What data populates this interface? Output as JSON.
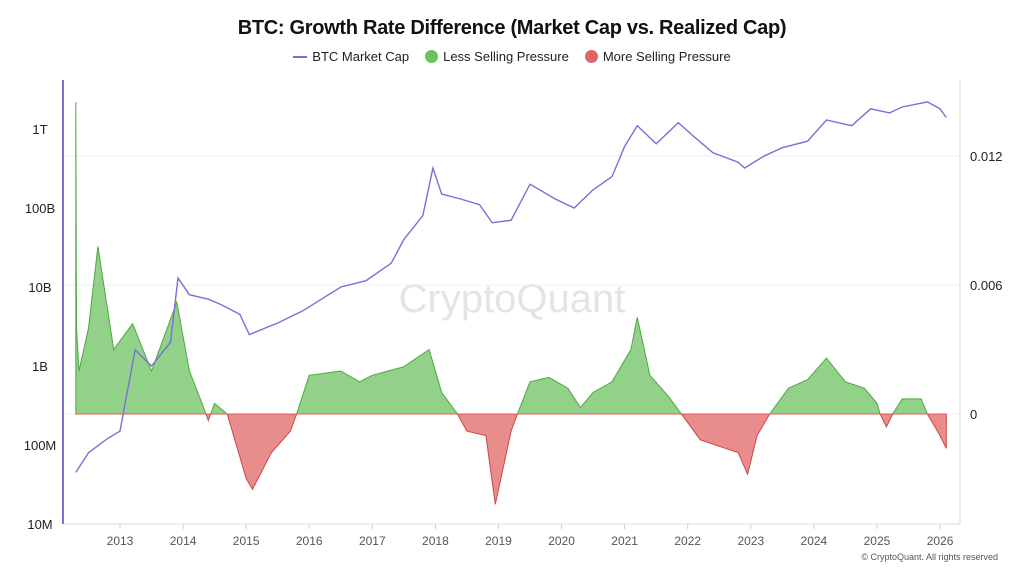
{
  "chart_data": {
    "type": "line",
    "title": "BTC: Growth Rate Difference (Market Cap vs. Realized Cap)",
    "legend": [
      {
        "name": "BTC Market Cap",
        "color": "#7b6fd6",
        "shape": "line"
      },
      {
        "name": "Less Selling Pressure",
        "color": "#6cc160",
        "shape": "circle"
      },
      {
        "name": "More Selling Pressure",
        "color": "#e06666",
        "shape": "circle"
      }
    ],
    "legend_placement": "top-center",
    "x_ticks": [
      "2013",
      "2014",
      "2015",
      "2016",
      "2017",
      "2018",
      "2019",
      "2020",
      "2021",
      "2022",
      "2023",
      "2024",
      "2025",
      "2026"
    ],
    "xlim": [
      2012.2,
      2026.3
    ],
    "y_left": {
      "scale": "log",
      "ticks": [
        "10M",
        "100M",
        "1B",
        "10B",
        "100B",
        "1T"
      ],
      "tick_values": [
        10000000.0,
        100000000.0,
        1000000000.0,
        10000000000.0,
        100000000000.0,
        1000000000000.0
      ],
      "ylim": [
        10000000.0,
        3500000000000.0
      ]
    },
    "y_right": {
      "scale": "linear",
      "ticks": [
        "0",
        "0.006",
        "0.012"
      ],
      "tick_values": [
        0,
        0.006,
        0.012
      ],
      "ylim": [
        -0.0051,
        0.0155
      ]
    },
    "grid": true,
    "series": [
      {
        "name": "BTC Market Cap",
        "axis": "left",
        "color": "#7b6fd6",
        "x": [
          2012.3,
          2012.5,
          2012.8,
          2013.0,
          2013.24,
          2013.5,
          2013.8,
          2013.92,
          2014.1,
          2014.4,
          2014.6,
          2014.9,
          2015.05,
          2015.5,
          2015.9,
          2016.5,
          2016.9,
          2017.3,
          2017.5,
          2017.8,
          2017.96,
          2018.1,
          2018.4,
          2018.7,
          2018.9,
          2019.2,
          2019.5,
          2019.9,
          2020.2,
          2020.5,
          2020.8,
          2021.0,
          2021.2,
          2021.5,
          2021.85,
          2022.1,
          2022.4,
          2022.8,
          2022.9,
          2023.2,
          2023.5,
          2023.9,
          2024.2,
          2024.6,
          2024.9,
          2025.2,
          2025.4,
          2025.8,
          2026.0,
          2026.1
        ],
        "y": [
          45000000.0,
          80000000.0,
          120000000.0,
          150000000.0,
          1600000000.0,
          1000000000.0,
          2000000000.0,
          13000000000.0,
          8000000000.0,
          7000000000.0,
          6000000000.0,
          4500000000.0,
          2500000000.0,
          3500000000.0,
          5000000000.0,
          10000000000.0,
          12000000000.0,
          20000000000.0,
          40000000000.0,
          80000000000.0,
          320000000000.0,
          150000000000.0,
          130000000000.0,
          110000000000.0,
          65000000000.0,
          70000000000.0,
          200000000000.0,
          130000000000.0,
          100000000000.0,
          170000000000.0,
          250000000000.0,
          600000000000.0,
          1100000000000.0,
          650000000000.0,
          1200000000000.0,
          800000000000.0,
          500000000000.0,
          380000000000.0,
          320000000000.0,
          450000000000.0,
          580000000000.0,
          700000000000.0,
          1300000000000.0,
          1100000000000.0,
          1800000000000.0,
          1600000000000.0,
          1900000000000.0,
          2200000000000.0,
          1800000000000.0,
          1400000000000.0
        ]
      },
      {
        "name": "Growth Rate Difference",
        "axis": "right",
        "positive_color": "#6cc160",
        "negative_color": "#e06666",
        "x": [
          2012.3,
          2012.31,
          2012.35,
          2012.5,
          2012.65,
          2012.9,
          2013.2,
          2013.5,
          2013.9,
          2014.1,
          2014.3,
          2014.4,
          2014.5,
          2014.7,
          2014.9,
          2015.0,
          2015.1,
          2015.4,
          2015.7,
          2015.8,
          2016.0,
          2016.5,
          2016.8,
          2017.0,
          2017.5,
          2017.9,
          2018.1,
          2018.3,
          2018.35,
          2018.5,
          2018.8,
          2018.95,
          2019.2,
          2019.3,
          2019.5,
          2019.8,
          2020.1,
          2020.3,
          2020.5,
          2020.8,
          2021.1,
          2021.2,
          2021.4,
          2021.7,
          2021.9,
          2022.2,
          2022.5,
          2022.8,
          2022.95,
          2023.1,
          2023.3,
          2023.6,
          2023.9,
          2024.2,
          2024.5,
          2024.8,
          2025.0,
          2025.05,
          2025.15,
          2025.25,
          2025.4,
          2025.7,
          2025.8,
          2026.0,
          2026.1
        ],
        "y": [
          0.0145,
          0.004,
          0.002,
          0.004,
          0.0078,
          0.003,
          0.0042,
          0.002,
          0.0052,
          0.002,
          0.0005,
          -0.0003,
          0.0005,
          0,
          -0.002,
          -0.003,
          -0.0035,
          -0.0018,
          -0.0008,
          0,
          0.0018,
          0.002,
          0.0015,
          0.0018,
          0.0022,
          0.003,
          0.001,
          0.0002,
          0,
          -0.0008,
          -0.001,
          -0.0042,
          -0.0008,
          0,
          0.0015,
          0.0017,
          0.0012,
          0.0003,
          0.001,
          0.0015,
          0.003,
          0.0045,
          0.0018,
          0.0008,
          0,
          -0.0012,
          -0.0015,
          -0.0018,
          -0.0028,
          -0.001,
          0,
          0.0012,
          0.0016,
          0.0026,
          0.0015,
          0.0012,
          0.0005,
          0,
          -0.0006,
          0,
          0.0007,
          0.0007,
          0,
          -0.001,
          -0.0016
        ]
      }
    ]
  },
  "watermark": "CryptoQuant",
  "copyright": "© CryptoQuant. All rights reserved"
}
